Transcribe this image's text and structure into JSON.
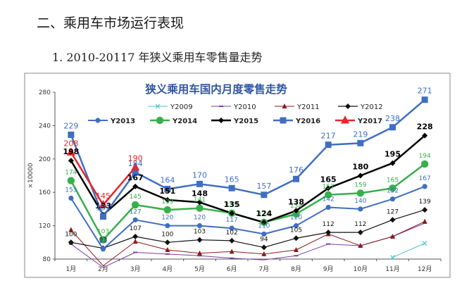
{
  "page": {
    "heading": "二、乘用车市场运行表现",
    "subheading": "1. 2010-20117 年狭义乘用车零售量走势"
  },
  "chart_data": {
    "type": "line",
    "title": "狭义乘用车国内月度零售走势",
    "ylabel": "×10000",
    "xlabel": "",
    "ylim": [
      80,
      280
    ],
    "yticks": [
      80,
      120,
      160,
      200,
      240,
      280
    ],
    "categories": [
      "1月",
      "2月",
      "3月",
      "4月",
      "5月",
      "6月",
      "7月",
      "8月",
      "9月",
      "10月",
      "11月",
      "12月"
    ],
    "series": [
      {
        "name": "Y2009",
        "color": "#4bc2c8",
        "marker": "x",
        "width": 1,
        "values": [
          null,
          null,
          null,
          null,
          null,
          null,
          null,
          null,
          79,
          null,
          82,
          99
        ],
        "labels": false
      },
      {
        "name": "Y2010",
        "color": "#7b3f9e",
        "marker": "dash",
        "width": 1,
        "values": [
          98,
          70,
          88,
          86,
          84,
          81,
          79,
          84,
          98,
          96,
          107,
          123
        ],
        "labels": false
      },
      {
        "name": "Y2011",
        "color": "#8b1a1a",
        "marker": "tri",
        "width": 1,
        "values": [
          115,
          72,
          101,
          91,
          87,
          89,
          86,
          91,
          110,
          96,
          107,
          125
        ],
        "labels": false
      },
      {
        "name": "Y2012",
        "color": "#111111",
        "marker": "diamond",
        "width": 1.2,
        "values": [
          100,
          93,
          107,
          100,
          103,
          102,
          94,
          105,
          112,
          112,
          127,
          139
        ],
        "labels": true,
        "labelColor": "#111111"
      },
      {
        "name": "Y2013",
        "color": "#3f6ec2",
        "marker": "circle",
        "width": 2,
        "values": [
          153,
          92,
          127,
          120,
          120,
          117,
          110,
          120,
          142,
          140,
          152,
          167
        ],
        "labels": true,
        "labelColor": "#3f6ec2"
      },
      {
        "name": "Y2014",
        "color": "#36b04b",
        "marker": "bigcircle",
        "width": 2.5,
        "values": [
          174,
          103,
          145,
          139,
          141,
          135,
          124,
          134,
          157,
          159,
          165,
          194
        ],
        "labels": true,
        "labelColor": "#36b04b"
      },
      {
        "name": "Y2015",
        "color": "#000000",
        "marker": "diamond",
        "width": 2.5,
        "values": [
          198,
          133,
          167,
          151,
          148,
          135,
          124,
          138,
          165,
          180,
          195,
          228
        ],
        "labels": true,
        "labelColor": "#000000"
      },
      {
        "name": "Y2016",
        "color": "#3f6ec2",
        "marker": "square",
        "width": 2.5,
        "values": [
          229,
          131,
          184,
          164,
          170,
          165,
          157,
          176,
          217,
          219,
          238,
          271
        ],
        "labels": true,
        "labelColor": "#3f6ec2"
      },
      {
        "name": "Y2017",
        "color": "#e8262b",
        "marker": "bigtri",
        "width": 2.5,
        "values": [
          208,
          145,
          190,
          null,
          null,
          null,
          null,
          null,
          null,
          null,
          null,
          null
        ],
        "labels": true,
        "labelColor": "#e8262b"
      }
    ],
    "legend_position": "top"
  }
}
